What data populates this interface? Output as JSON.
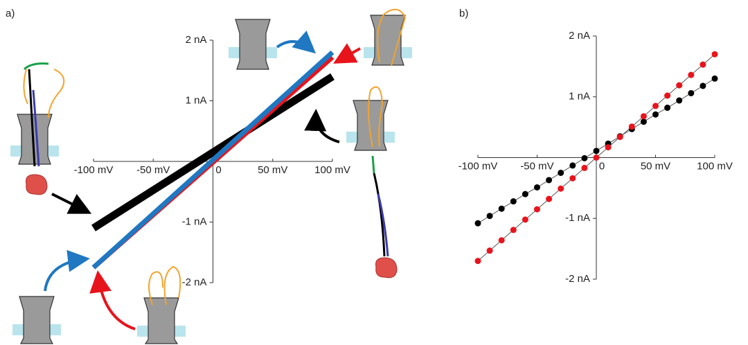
{
  "chart_data": [
    {
      "type": "line",
      "panel": "a)",
      "x": [
        -100,
        100
      ],
      "series": [
        {
          "color": "#000000",
          "values": [
            -1.1,
            1.4
          ]
        },
        {
          "color": "#e8141c",
          "values": [
            -1.75,
            1.72
          ]
        },
        {
          "color": "#1f78c1",
          "values": [
            -1.75,
            1.8
          ]
        }
      ],
      "xlim": [
        -100,
        100
      ],
      "ylim": [
        -2,
        2
      ],
      "xticks": [
        {
          "value": -100,
          "label": "-100 mV"
        },
        {
          "value": -50,
          "label": "-50 mV"
        },
        0,
        {
          "value": 50,
          "label": "50 mV"
        },
        {
          "value": 100,
          "label": "100 mV"
        }
      ],
      "yticks": [
        {
          "value": 2,
          "label": "2 nA"
        },
        {
          "value": 1,
          "label": "1 nA"
        },
        {
          "value": -1,
          "label": "-1 nA"
        },
        {
          "value": -2,
          "label": "-2 nA"
        }
      ]
    },
    {
      "type": "scatter",
      "panel": "b)",
      "x": [
        -100,
        -90,
        -80,
        -70,
        -60,
        -50,
        -40,
        -30,
        -20,
        -10,
        0,
        10,
        20,
        30,
        40,
        50,
        60,
        70,
        80,
        90,
        100
      ],
      "series": [
        {
          "color": "#000000",
          "values": [
            -1.08,
            -0.96,
            -0.84,
            -0.72,
            -0.6,
            -0.49,
            -0.37,
            -0.25,
            -0.13,
            -0.01,
            0.11,
            0.23,
            0.35,
            0.47,
            0.59,
            0.71,
            0.82,
            0.94,
            1.06,
            1.18,
            1.3
          ]
        },
        {
          "color": "#e8141c",
          "values": [
            -1.7,
            -1.53,
            -1.36,
            -1.19,
            -1.02,
            -0.85,
            -0.68,
            -0.51,
            -0.34,
            -0.17,
            0,
            0.17,
            0.34,
            0.51,
            0.68,
            0.85,
            1.02,
            1.19,
            1.36,
            1.53,
            1.7
          ]
        }
      ],
      "xlim": [
        -100,
        100
      ],
      "ylim": [
        -2,
        2
      ],
      "xticks": [
        {
          "value": -100,
          "label": "-100 mV"
        },
        {
          "value": -50,
          "label": "-50 mV"
        },
        0,
        {
          "value": 50,
          "label": "50 mV"
        },
        {
          "value": 100,
          "label": "100 mV"
        }
      ],
      "yticks": [
        {
          "value": 2,
          "label": "2 nA"
        },
        {
          "value": 1,
          "label": "1 nA"
        },
        {
          "value": -1,
          "label": "-1 nA"
        },
        {
          "value": -2,
          "label": "-2 nA"
        }
      ]
    }
  ]
}
